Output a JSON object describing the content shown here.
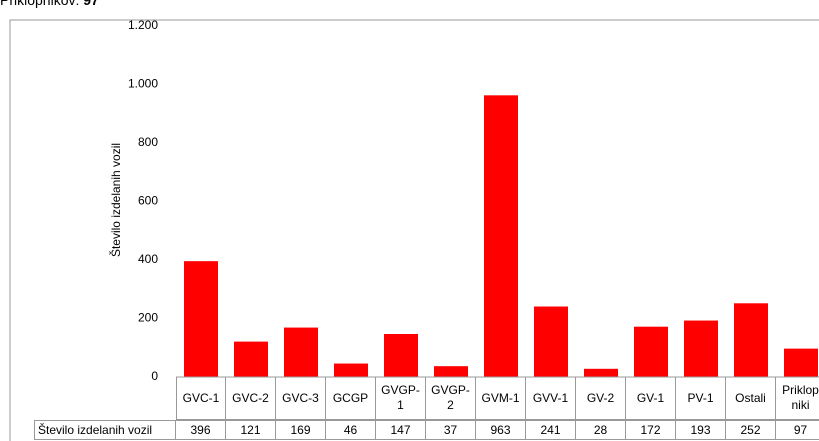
{
  "caption": {
    "label": "Priklopnikov:",
    "value": "97"
  },
  "chart_data": {
    "type": "bar",
    "y_axis_label": "Število izdelanih vozil",
    "table_row_label": "Število izdelanih vozil",
    "categories": [
      "GVC-1",
      "GVC-2",
      "GVC-3",
      "GCGP",
      "GVGP-1",
      "GVGP-2",
      "GVM-1",
      "GVV-1",
      "GV-2",
      "GV-1",
      "PV-1",
      "Ostali",
      "Priklopniki"
    ],
    "values": [
      396,
      121,
      169,
      46,
      147,
      37,
      963,
      241,
      28,
      172,
      193,
      252,
      97
    ],
    "color": "#ff0000",
    "ylim": [
      0,
      1200
    ],
    "yticks": [
      0,
      200,
      400,
      600,
      800,
      {
        "value": 1000,
        "label": "1.000"
      },
      {
        "value": 1200,
        "label": "1.200"
      }
    ],
    "grid": false
  }
}
